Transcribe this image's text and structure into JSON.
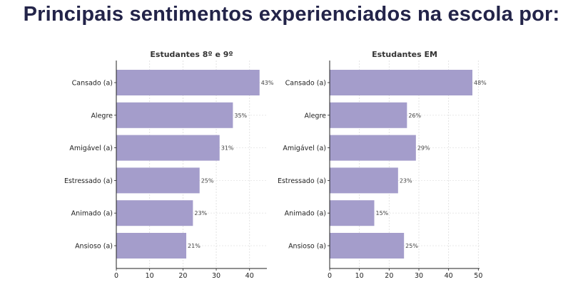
{
  "title": "Principais sentimentos experienciados na escola por:",
  "bar_color": "#a49dcb",
  "chart_data": [
    {
      "type": "bar",
      "orientation": "horizontal",
      "title": "Estudantes 8º e 9º",
      "categories": [
        "Cansado (a)",
        "Alegre",
        "Amigável (a)",
        "Estressado (a)",
        "Animado (a)",
        "Ansioso (a)"
      ],
      "values": [
        43,
        35,
        31,
        25,
        23,
        21
      ],
      "data_labels": [
        "43%",
        "35%",
        "31%",
        "25%",
        "23%",
        "21%"
      ],
      "xlim": [
        0,
        45.2
      ],
      "xticks": [
        0,
        10,
        20,
        30,
        40
      ],
      "grid": true
    },
    {
      "type": "bar",
      "orientation": "horizontal",
      "title": "Estudantes EM",
      "categories": [
        "Cansado (a)",
        "Alegre",
        "Amigável (a)",
        "Estressado (a)",
        "Animado (a)",
        "Ansioso (a)"
      ],
      "values": [
        48,
        26,
        29,
        23,
        15,
        25
      ],
      "data_labels": [
        "48%",
        "26%",
        "29%",
        "23%",
        "15%",
        "25%"
      ],
      "xlim": [
        0,
        50.4
      ],
      "xticks": [
        0,
        10,
        20,
        30,
        40,
        50
      ],
      "grid": true
    }
  ]
}
